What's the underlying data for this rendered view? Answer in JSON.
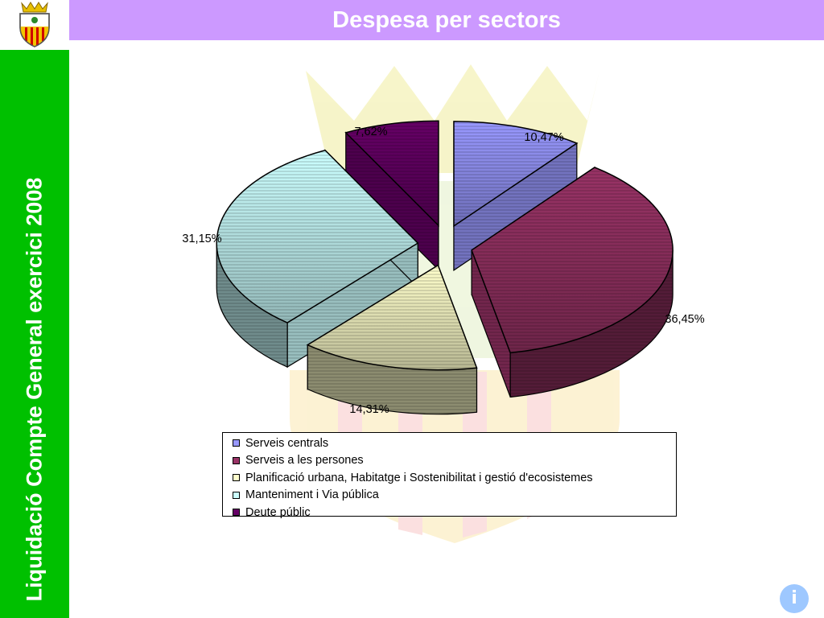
{
  "header": {
    "title": "Despesa per sectors"
  },
  "sidebar": {
    "text": "Liquidació Compte General exercici 2008"
  },
  "info_button": {
    "label": "i"
  },
  "colors": {
    "sidebar": "#00c000",
    "header": "#cc99ff",
    "info": "#9ec8ff"
  },
  "chart_data": {
    "type": "pie",
    "title": "",
    "series": [
      {
        "name": "Serveis centrals",
        "value": 10.47,
        "label": "10,47%",
        "color": "#9999ff"
      },
      {
        "name": "Serveis a les persones",
        "value": 36.45,
        "label": "36,45%",
        "color": "#993366"
      },
      {
        "name": "Planificació urbana, Habitatge i Sostenibilitat i gestió d'ecosistemes",
        "value": 14.31,
        "label": "14,31%",
        "color": "#ffffcc"
      },
      {
        "name": "Manteniment i Via pública",
        "value": 31.15,
        "label": "31,15%",
        "color": "#ccffff"
      },
      {
        "name": "Deute públic",
        "value": 7.62,
        "label": "7,62%",
        "color": "#660066"
      }
    ],
    "legend_position": "bottom"
  }
}
